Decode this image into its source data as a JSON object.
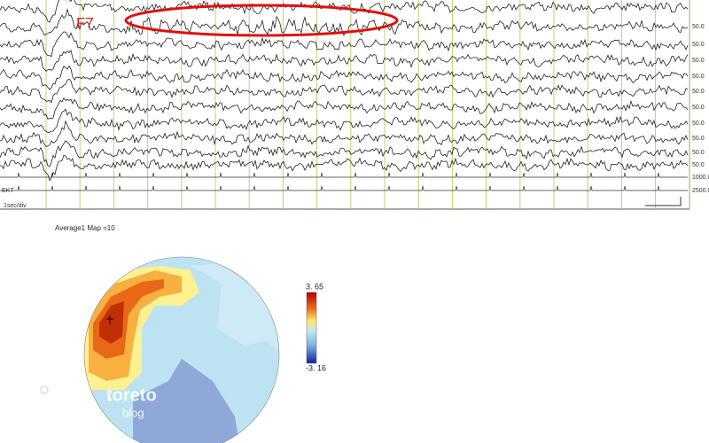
{
  "annotation": "F7",
  "channel_scales": [
    "50.0",
    "50.0",
    "50.0",
    "50.0",
    "50.0",
    "50.0",
    "50.0",
    "50.0",
    "50.0",
    "50.0"
  ],
  "aux_scales": [
    "1000.0",
    "2500.0"
  ],
  "aux_label": "EKT",
  "time_scale": "1sec/div",
  "map_title": "Average1 Map  =10",
  "colorbar": {
    "max": "3. 65",
    "min": "-3. 16"
  },
  "watermark": {
    "name": "toreto",
    "sub": "blog"
  }
}
